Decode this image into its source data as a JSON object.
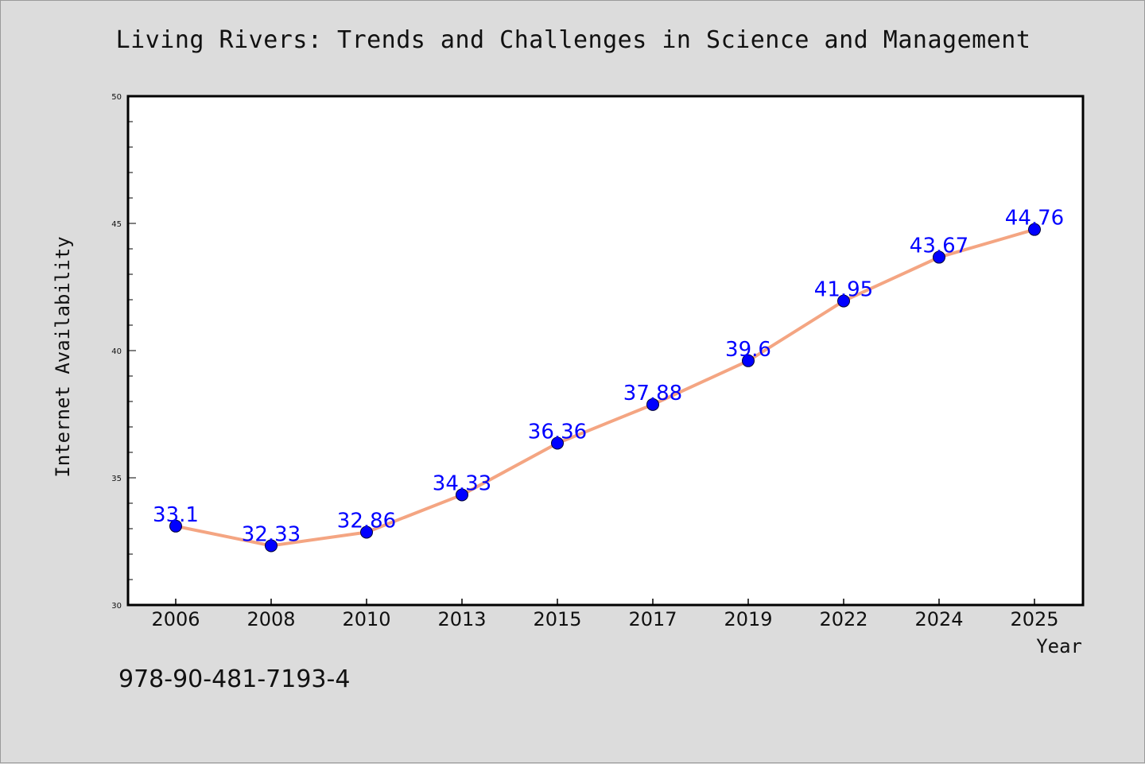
{
  "chart_data": {
    "type": "line",
    "title": "Living Rivers: Trends and Challenges in Science and Management",
    "xlabel": "Year",
    "ylabel": "Internet Availability",
    "categories": [
      "2006",
      "2008",
      "2010",
      "2013",
      "2015",
      "2017",
      "2019",
      "2022",
      "2024",
      "2025"
    ],
    "series": [
      {
        "values": [
          33.1,
          32.33,
          32.86,
          34.33,
          36.36,
          37.88,
          39.6,
          41.95,
          43.67,
          44.76
        ]
      }
    ],
    "data_labels": [
      "33.1",
      "32.33",
      "32.86",
      "34.33",
      "36.36",
      "37.88",
      "39.6",
      "41.95",
      "43.67",
      "44.76"
    ],
    "ylim": [
      30,
      50
    ],
    "yticks": [
      "30",
      "35",
      "40",
      "45",
      "50"
    ],
    "grid": false,
    "legend": "none",
    "colors": {
      "line": "#f4a582",
      "marker": "#0000ff",
      "label": "#0000ff"
    }
  },
  "footer": {
    "isbn": "978-90-481-7193-4"
  }
}
